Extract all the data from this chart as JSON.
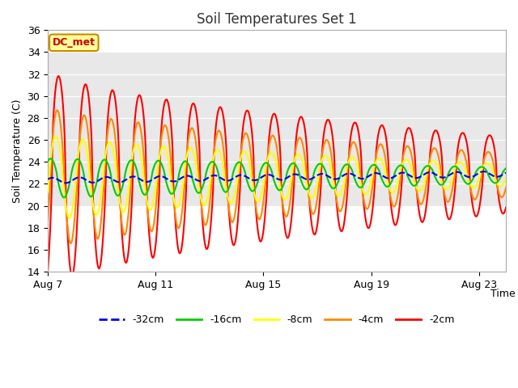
{
  "title": "Soil Temperatures Set 1",
  "xlabel": "Time",
  "ylabel": "Soil Temperature (C)",
  "ylim": [
    14,
    36
  ],
  "xlim_days": [
    0,
    17
  ],
  "x_ticks_days": [
    0,
    4,
    8,
    12,
    16
  ],
  "x_tick_labels": [
    "Aug 7",
    "Aug 11",
    "Aug 15",
    "Aug 19",
    "Aug 23"
  ],
  "y_ticks": [
    14,
    16,
    18,
    20,
    22,
    24,
    26,
    28,
    30,
    32,
    34,
    36
  ],
  "fig_bg_color": "#ffffff",
  "plot_bg_color": "#ffffff",
  "shaded_band": [
    20,
    34
  ],
  "shaded_color": "#e8e8e8",
  "series": {
    "neg32cm": {
      "color": "#0000ee",
      "linestyle": "--",
      "linewidth": 1.5,
      "label": "-32cm"
    },
    "neg16cm": {
      "color": "#00cc00",
      "linestyle": "-",
      "linewidth": 1.5,
      "label": "-16cm"
    },
    "neg8cm": {
      "color": "#ffff00",
      "linestyle": "-",
      "linewidth": 1.5,
      "label": "-8cm"
    },
    "neg4cm": {
      "color": "#ff8800",
      "linestyle": "-",
      "linewidth": 1.5,
      "label": "-4cm"
    },
    "neg2cm": {
      "color": "#ff0000",
      "linestyle": "-",
      "linewidth": 1.5,
      "label": "-2cm"
    }
  },
  "dc_met_label": "DC_met",
  "dc_met_text_color": "#cc0000",
  "dc_met_bg": "#ffff99",
  "dc_met_border": "#cc8800"
}
